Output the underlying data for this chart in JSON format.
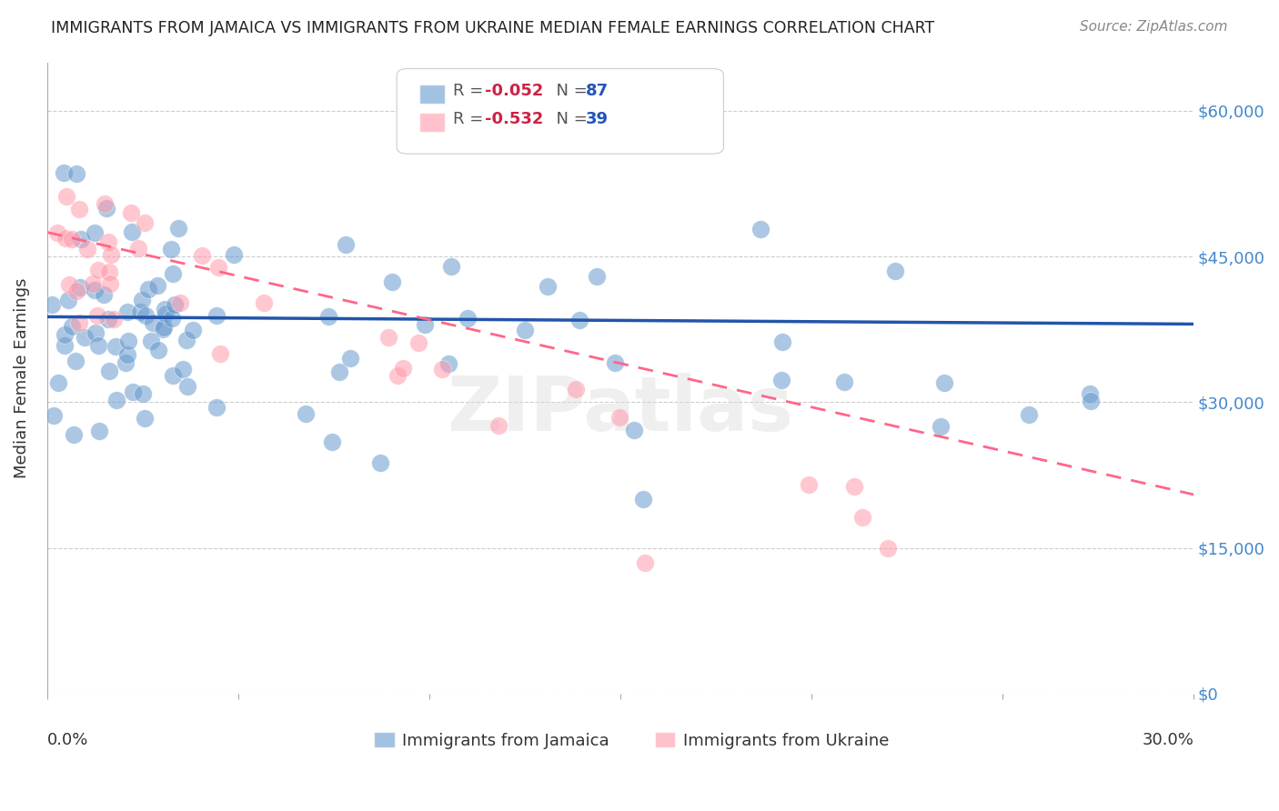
{
  "title": "IMMIGRANTS FROM JAMAICA VS IMMIGRANTS FROM UKRAINE MEDIAN FEMALE EARNINGS CORRELATION CHART",
  "source": "Source: ZipAtlas.com",
  "ylabel": "Median Female Earnings",
  "ytick_values": [
    0,
    15000,
    30000,
    45000,
    60000
  ],
  "ytick_dollar_labels": [
    "$0",
    "$15,000",
    "$30,000",
    "$45,000",
    "$60,000"
  ],
  "ylim": [
    0,
    65000
  ],
  "xlim": [
    0.0,
    0.3
  ],
  "jamaica_color": "#6699cc",
  "ukraine_color": "#ff99aa",
  "trendline_jamaica_color": "#2255aa",
  "trendline_ukraine_color": "#ff6688",
  "background_color": "#ffffff",
  "grid_color": "#cccccc",
  "jamaica_R": "-0.052",
  "jamaica_N": "87",
  "ukraine_R": "-0.532",
  "ukraine_N": "39",
  "r_color": "#cc2244",
  "n_color": "#2255bb",
  "axis_tick_color": "#4488cc",
  "watermark": "ZIPatlas"
}
